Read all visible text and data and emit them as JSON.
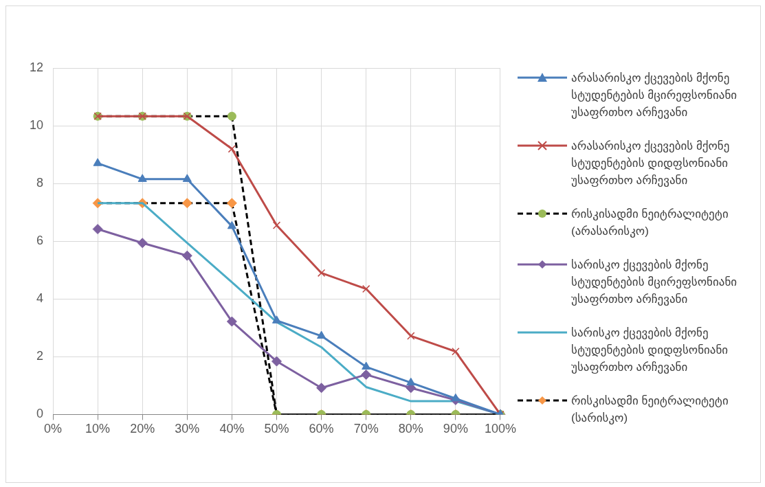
{
  "chart_data": {
    "type": "line",
    "categories": [
      "0%",
      "10%",
      "20%",
      "30%",
      "40%",
      "50%",
      "60%",
      "70%",
      "80%",
      "90%",
      "100%"
    ],
    "ylim": [
      0,
      12
    ],
    "yticks": [
      0,
      2,
      4,
      6,
      8,
      10,
      12
    ],
    "grid": true,
    "legend": "right",
    "series": [
      {
        "name": "არასარისკო ქცევების მქონე სტუდენტების მცირეფსონიანი უსაფრთხო არჩევანი",
        "color": "#4a7ebb",
        "marker": "triangle",
        "line_style": "solid",
        "values": [
          null,
          8.7,
          8.15,
          8.15,
          6.52,
          3.25,
          2.72,
          1.65,
          1.1,
          0.55,
          0
        ]
      },
      {
        "name": "არასარისკო ქცევების მქონე სტუდენტების დიდფსონიანი უსაფრთხო არჩევანი",
        "color": "#be4b48",
        "marker": "cross",
        "line_style": "solid",
        "values": [
          null,
          10.33,
          10.33,
          10.33,
          9.2,
          6.55,
          4.9,
          4.35,
          2.72,
          2.18,
          0
        ]
      },
      {
        "name": "რისკისადმი ნეიტრალიტეტი (არასარისკო)",
        "color": "#000000",
        "marker": "circle",
        "line_style": "dashed",
        "colors": [
          "#9bbb59",
          "#9bbb59",
          "#9bbb59",
          "#9bbb59",
          "#9bbb59",
          "#9bbb59",
          "#9bbb59",
          "#9bbb59",
          "#9bbb59",
          "#9bbb59",
          "#9bbb59"
        ],
        "values": [
          null,
          10.33,
          10.33,
          10.33,
          10.33,
          0,
          0,
          0,
          0,
          0,
          0
        ]
      },
      {
        "name": "სარისკო ქცევების მქონე სტუდენტების მცირეფსონიანი უსაფრთხო არჩევანი",
        "color": "#7d60a0",
        "marker": "diamond",
        "line_style": "solid",
        "values": [
          null,
          6.42,
          5.94,
          5.5,
          3.22,
          1.84,
          0.92,
          1.38,
          0.92,
          0.5,
          0
        ]
      },
      {
        "name": "სარისკო ქცევების მქონე სტუდენტების დიდფსონიანი უსაფრთხო არჩევანი",
        "color": "#4bacc6",
        "marker": "none",
        "line_style": "solid",
        "values": [
          null,
          7.32,
          7.32,
          5.94,
          4.58,
          3.2,
          2.33,
          0.95,
          0.46,
          0.46,
          0
        ]
      },
      {
        "name": "რისკისადმი ნეიტრალიტეტი (სარისკო)",
        "color": "#000000",
        "marker": "diamond",
        "line_style": "dashed",
        "colors": [
          "#f79646",
          "#f79646",
          "#f79646",
          "#f79646",
          "#f79646",
          "#f79646",
          "#f79646",
          "#f79646",
          "#f79646",
          "#f79646",
          "#f79646"
        ],
        "values": [
          null,
          7.32,
          7.32,
          7.32,
          7.32,
          0,
          0,
          0,
          0,
          0,
          0
        ]
      }
    ]
  }
}
